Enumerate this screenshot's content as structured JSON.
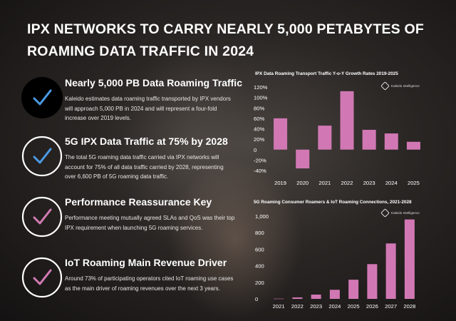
{
  "headline": "IPX NETWORKS TO CARRY NEARLY 5,000 PETABYTES OF ROAMING DATA TRAFFIC IN 2024",
  "colors": {
    "bar": "#d178b4",
    "ring_blue": "#4a9be6",
    "ring_pink": "#d37bb4"
  },
  "items": [
    {
      "title": "Nearly 5,000 PB Data Roaming Traffic",
      "body": "Kaleido estimates data roaming traffic transported by IPX vendors will approach 5,000 PB in 2024 and will represent a four-fold increase over 2019 levels.",
      "icon": "check-icon"
    },
    {
      "title": "5G IPX Data Traffic at 75% by 2028",
      "body": "The total 5G roaming data traffic carried via IPX networks will account for 75% of all data traffic carried by 2028, representing over 6,600 PB of 5G roaming data traffic.",
      "icon": "check-icon"
    },
    {
      "title": "Performance Reassurance Key",
      "body": "Performance meeting mutually agreed SLAs and QoS was their top IPX requirement when launching 5G roaming services.",
      "icon": "check-icon"
    },
    {
      "title": "IoT Roaming Main Revenue Driver",
      "body": "Around 73% of participating operators cited IoT roaming use cases as the main driver of roaming revenues over the next 3 years.",
      "icon": "check-icon"
    }
  ],
  "chart_data": [
    {
      "type": "bar",
      "title": "IPX Data Roaming Transport Traffic Y-o-Y Growth Rates 2019-2025",
      "brand": "Kaleido Intelligence",
      "categories": [
        "2019",
        "2020",
        "2021",
        "2022",
        "2023",
        "2024",
        "2025"
      ],
      "values": [
        60,
        -36,
        46,
        112,
        38,
        31,
        15
      ],
      "ylim": [
        -40,
        120
      ],
      "yticks": [
        -40,
        -20,
        0,
        20,
        40,
        60,
        80,
        100,
        120
      ],
      "ytick_labels": [
        "-40%",
        "-20%",
        "0",
        "20%",
        "40%",
        "60%",
        "80%",
        "100%",
        "120%"
      ],
      "grid": false
    },
    {
      "type": "bar",
      "title": "5G Roaming Consumer Roamers & IoT Roaming Connections, 2021-2028",
      "brand": "Kaleido Intelligence",
      "categories": [
        "2021",
        "2022",
        "2023",
        "2024",
        "2025",
        "2026",
        "2027",
        "2028"
      ],
      "values": [
        3,
        18,
        52,
        110,
        232,
        420,
        670,
        960
      ],
      "ylim": [
        0,
        1000
      ],
      "yticks": [
        0,
        200,
        400,
        600,
        800,
        1000
      ],
      "ytick_labels": [
        "0",
        "200",
        "400",
        "600",
        "800",
        "1,000"
      ],
      "grid": false
    }
  ]
}
